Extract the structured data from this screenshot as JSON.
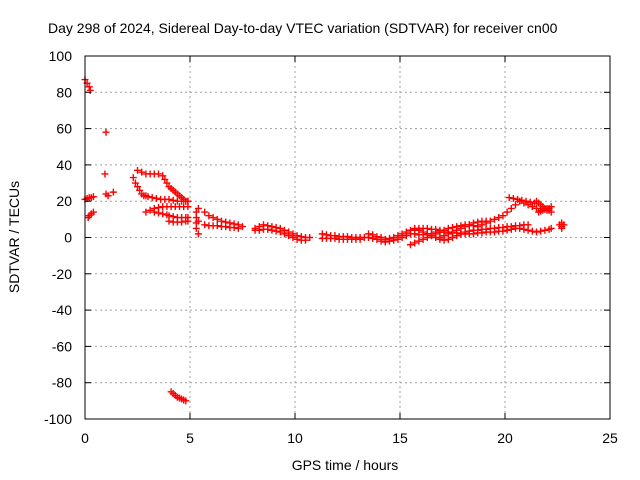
{
  "chart_data": {
    "type": "scatter",
    "title": "Day 298 of 2024, Sidereal Day-to-day VTEC variation (SDTVAR) for receiver cn00",
    "xlabel": "GPS time / hours",
    "ylabel": "SDTVAR / TECUs",
    "xlim": [
      0,
      25
    ],
    "ylim": [
      -100,
      100
    ],
    "xticks": [
      0,
      5,
      10,
      15,
      20,
      25
    ],
    "yticks": [
      -100,
      -80,
      -60,
      -40,
      -20,
      0,
      20,
      40,
      60,
      80,
      100
    ],
    "grid": true,
    "marker": "plus",
    "color": "#ff0000",
    "series": [
      {
        "name": "SDTVAR",
        "segments": [
          {
            "x": [
              0.0,
              0.1,
              0.2,
              0.25
            ],
            "y": [
              87,
              85,
              83,
              81
            ]
          },
          {
            "x": [
              0.0,
              0.1,
              0.2,
              0.3,
              0.4
            ],
            "y": [
              21,
              21.5,
              22,
              22,
              22.5
            ]
          },
          {
            "x": [
              0.15,
              0.2,
              0.3,
              0.4
            ],
            "y": [
              11,
              12,
              13,
              14
            ]
          },
          {
            "x": [
              1.0
            ],
            "y": [
              58
            ]
          },
          {
            "x": [
              0.95
            ],
            "y": [
              35
            ]
          },
          {
            "x": [
              1.0,
              1.1,
              1.35
            ],
            "y": [
              24,
              23,
              25
            ]
          },
          {
            "x": [
              2.3,
              2.4,
              2.5,
              2.6,
              2.7,
              2.8,
              2.9,
              3.0,
              3.2,
              3.4,
              3.6,
              3.8,
              4.0,
              4.2,
              4.4,
              4.6,
              4.8,
              4.9
            ],
            "y": [
              33,
              30,
              28,
              26,
              24,
              23,
              23,
              22.5,
              22,
              21.5,
              21,
              21,
              21,
              20.5,
              20,
              20,
              20,
              20
            ]
          },
          {
            "x": [
              2.5,
              2.7,
              2.9,
              3.1,
              3.3,
              3.5,
              3.7,
              3.8,
              3.9,
              4.0,
              4.1,
              4.2,
              4.3,
              4.4,
              4.5,
              4.6,
              4.7,
              4.8,
              4.9
            ],
            "y": [
              37,
              36,
              35,
              35,
              35,
              35,
              34,
              32,
              30,
              28,
              27,
              26,
              25,
              24,
              23,
              22,
              21,
              20,
              20
            ]
          },
          {
            "x": [
              2.9,
              3.1,
              3.3,
              3.5,
              3.7,
              3.9,
              4.1,
              4.3,
              4.5,
              4.7,
              4.9
            ],
            "y": [
              14,
              15,
              16,
              16.5,
              17,
              17,
              17,
              17,
              17,
              17,
              17
            ]
          },
          {
            "x": [
              3.3,
              3.5,
              3.7,
              3.9,
              4.0,
              4.2,
              4.4,
              4.6,
              4.8,
              4.9
            ],
            "y": [
              14,
              13.5,
              13,
              12.5,
              12,
              11.5,
              11,
              11,
              11,
              11
            ]
          },
          {
            "x": [
              4.0,
              4.2,
              4.4,
              4.6,
              4.8,
              4.9
            ],
            "y": [
              9,
              8.5,
              8.5,
              8.5,
              9,
              9
            ]
          },
          {
            "x": [
              4.1,
              4.2,
              4.3,
              4.4,
              4.5,
              4.6,
              4.7,
              4.8
            ],
            "y": [
              -85,
              -86,
              -87,
              -88,
              -88.5,
              -89,
              -89.5,
              -90
            ]
          },
          {
            "x": [
              5.3,
              5.3,
              5.3,
              5.3,
              5.4,
              5.4,
              5.4
            ],
            "y": [
              5,
              8,
              11,
              14,
              16,
              2,
              9
            ]
          },
          {
            "x": [
              5.7,
              5.9,
              6.1,
              6.3,
              6.5,
              6.7,
              6.9,
              7.1,
              7.3,
              7.5
            ],
            "y": [
              14,
              12,
              11,
              10,
              9,
              8.5,
              8,
              7.5,
              7,
              6
            ]
          },
          {
            "x": [
              5.7,
              5.9,
              6.1,
              6.3,
              6.5,
              6.7,
              6.9,
              7.1,
              7.3
            ],
            "y": [
              7,
              6.5,
              6.5,
              6.5,
              6,
              6,
              5.5,
              5.5,
              5
            ]
          },
          {
            "x": [
              8.1,
              8.3,
              8.5,
              8.7,
              8.9,
              9.1,
              9.3,
              9.5,
              9.7,
              9.9,
              10.1,
              10.3,
              10.5,
              10.7
            ],
            "y": [
              5,
              6,
              7,
              6.5,
              6,
              5.5,
              5,
              4,
              3,
              2,
              1,
              0.5,
              0,
              0
            ]
          },
          {
            "x": [
              8.1,
              8.3,
              8.5,
              8.7,
              8.9,
              9.1,
              9.3,
              9.5,
              9.7,
              9.9,
              10.1,
              10.3,
              10.5
            ],
            "y": [
              4,
              4,
              4.5,
              4.5,
              4,
              3.5,
              3,
              2,
              1,
              0,
              -1,
              -1.5,
              -1.5
            ]
          },
          {
            "x": [
              11.3,
              11.5,
              11.7,
              11.9,
              12.1,
              12.3,
              12.5,
              12.7,
              12.9,
              13.1,
              13.3
            ],
            "y": [
              2,
              1.5,
              1,
              1,
              0.5,
              0.5,
              0.5,
              0,
              0,
              0,
              0
            ]
          },
          {
            "x": [
              11.3,
              11.5,
              11.7,
              11.9,
              12.1,
              12.3,
              12.5,
              12.7,
              12.9,
              13.1
            ],
            "y": [
              -0.5,
              -0.5,
              -0.5,
              -0.5,
              -1,
              -1,
              -1,
              -1,
              -1,
              -1
            ]
          },
          {
            "x": [
              13.5,
              13.7,
              13.9,
              14.1,
              14.3,
              14.5,
              14.7,
              14.9,
              15.1,
              15.3,
              15.5,
              15.7,
              15.9,
              16.1,
              16.3,
              16.5,
              16.7,
              16.9
            ],
            "y": [
              2,
              1.5,
              0.5,
              0,
              -1,
              -0.5,
              0,
              1,
              2,
              3,
              4,
              4.5,
              5,
              5,
              5,
              4.5,
              4.5,
              4
            ]
          },
          {
            "x": [
              13.5,
              13.7,
              13.9,
              14.1,
              14.3,
              14.5,
              14.7,
              14.9,
              15.1,
              15.3,
              15.5,
              15.7,
              15.9,
              16.1,
              16.3,
              16.5,
              16.7,
              16.9
            ],
            "y": [
              0,
              -0.5,
              -1,
              -2,
              -2.5,
              -2,
              -1.5,
              -1,
              0,
              1,
              2,
              2,
              1.5,
              1.5,
              2,
              2,
              3,
              3
            ]
          },
          {
            "x": [
              15.5,
              15.7,
              15.9,
              16.1,
              16.3,
              16.5,
              16.7,
              16.9,
              17.1,
              17.3,
              17.5,
              17.7,
              17.9,
              18.1,
              18.3,
              18.5
            ],
            "y": [
              -4,
              -3,
              -2,
              -1,
              0,
              1,
              2,
              3,
              4,
              5,
              5.5,
              6,
              6.5,
              7,
              7,
              6.5
            ]
          },
          {
            "x": [
              15.7,
              15.9,
              16.1,
              16.3,
              16.5,
              16.7,
              16.9,
              17.1,
              17.3,
              17.5,
              17.7,
              17.9,
              18.1,
              18.3,
              18.5
            ],
            "y": [
              5,
              4,
              3,
              2,
              1,
              0,
              -1,
              -1.5,
              -1,
              0,
              1,
              2,
              3,
              3.5,
              4
            ]
          },
          {
            "x": [
              16.9,
              17.1,
              17.3,
              17.5,
              17.7,
              17.9,
              18.1,
              18.3,
              18.5,
              18.7,
              18.9,
              19.1
            ],
            "y": [
              0,
              1,
              2,
              3,
              4,
              5,
              6,
              7,
              8,
              8.5,
              9,
              9
            ]
          },
          {
            "x": [
              17.1,
              17.3,
              17.5,
              17.7,
              17.9,
              18.1,
              18.3,
              18.5,
              18.7,
              18.9,
              19.1,
              19.3,
              19.5,
              19.7,
              19.9,
              20.1,
              20.3,
              20.5,
              20.7,
              20.9,
              21.1,
              21.3
            ],
            "y": [
              3,
              3,
              2.5,
              2.5,
              2,
              2,
              2,
              2,
              2.5,
              2.5,
              3,
              3,
              3,
              3.5,
              3.5,
              4,
              4.5,
              5,
              5,
              4.5,
              4,
              3.5
            ]
          },
          {
            "x": [
              18.7,
              18.9,
              19.1,
              19.3,
              19.5,
              19.7,
              19.9,
              20.1,
              20.3,
              20.5,
              20.7,
              20.9,
              21.1,
              21.3,
              21.5
            ],
            "y": [
              6,
              7,
              8,
              9,
              10,
              11,
              12,
              14,
              16,
              18,
              20,
              19,
              18,
              17,
              16
            ]
          },
          {
            "x": [
              20.2,
              20.4,
              20.6,
              20.8,
              21.0,
              21.2,
              21.4
            ],
            "y": [
              22,
              21.5,
              21,
              20.5,
              20,
              19.5,
              19
            ]
          },
          {
            "x": [
              18.5,
              18.7,
              18.9,
              19.1,
              19.3,
              19.5,
              19.7,
              19.9,
              20.1,
              20.3,
              20.5,
              20.7,
              20.9,
              21.1
            ],
            "y": [
              4,
              4,
              4.5,
              4.5,
              5,
              5,
              5.5,
              5.5,
              6,
              6,
              6.5,
              6.5,
              7,
              7
            ]
          },
          {
            "x": [
              21.5,
              21.6,
              21.7,
              21.8,
              21.9,
              22.0,
              22.1,
              22.2
            ],
            "y": [
              20,
              19,
              18,
              17,
              16,
              15,
              16,
              17
            ]
          },
          {
            "x": [
              21.6,
              21.7,
              21.8,
              21.9,
              22.0,
              22.1,
              22.2
            ],
            "y": [
              14,
              14.5,
              15,
              15.5,
              16,
              15,
              14
            ]
          },
          {
            "x": [
              21.5,
              21.7,
              21.9,
              22.1,
              22.2
            ],
            "y": [
              3,
              3.5,
              4,
              4.5,
              5
            ]
          },
          {
            "x": [
              22.6,
              22.7,
              22.7,
              22.7,
              22.8
            ],
            "y": [
              7,
              8,
              6,
              5,
              7
            ]
          }
        ]
      }
    ]
  }
}
